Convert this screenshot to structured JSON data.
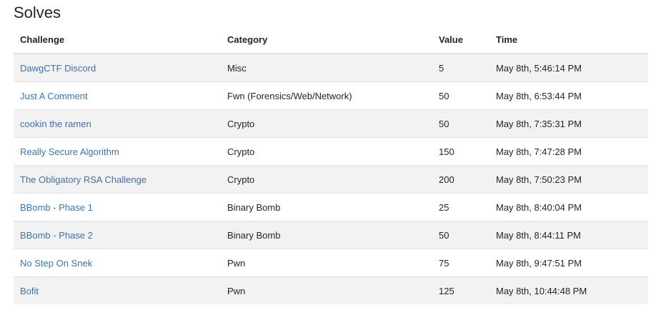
{
  "title": "Solves",
  "table": {
    "headers": {
      "challenge": "Challenge",
      "category": "Category",
      "value": "Value",
      "time": "Time"
    },
    "rows": [
      {
        "challenge": "DawgCTF Discord",
        "category": "Misc",
        "value": "5",
        "time": "May 8th, 5:46:14 PM"
      },
      {
        "challenge": "Just A Comment",
        "category": "Fwn (Forensics/Web/Network)",
        "value": "50",
        "time": "May 8th, 6:53:44 PM"
      },
      {
        "challenge": "cookin the ramen",
        "category": "Crypto",
        "value": "50",
        "time": "May 8th, 7:35:31 PM"
      },
      {
        "challenge": "Really Secure Algorithm",
        "category": "Crypto",
        "value": "150",
        "time": "May 8th, 7:47:28 PM"
      },
      {
        "challenge": "The Obligatory RSA Challenge",
        "category": "Crypto",
        "value": "200",
        "time": "May 8th, 7:50:23 PM"
      },
      {
        "challenge": "BBomb - Phase 1",
        "category": "Binary Bomb",
        "value": "25",
        "time": "May 8th, 8:40:04 PM"
      },
      {
        "challenge": "BBomb - Phase 2",
        "category": "Binary Bomb",
        "value": "50",
        "time": "May 8th, 8:44:11 PM"
      },
      {
        "challenge": "No Step On Snek",
        "category": "Pwn",
        "value": "75",
        "time": "May 8th, 9:47:51 PM"
      },
      {
        "challenge": "Bofit",
        "category": "Pwn",
        "value": "125",
        "time": "May 8th, 10:44:48 PM"
      }
    ]
  },
  "colors": {
    "link": "#3a73b1",
    "stripe": "#f2f2f2",
    "text": "#212529"
  }
}
